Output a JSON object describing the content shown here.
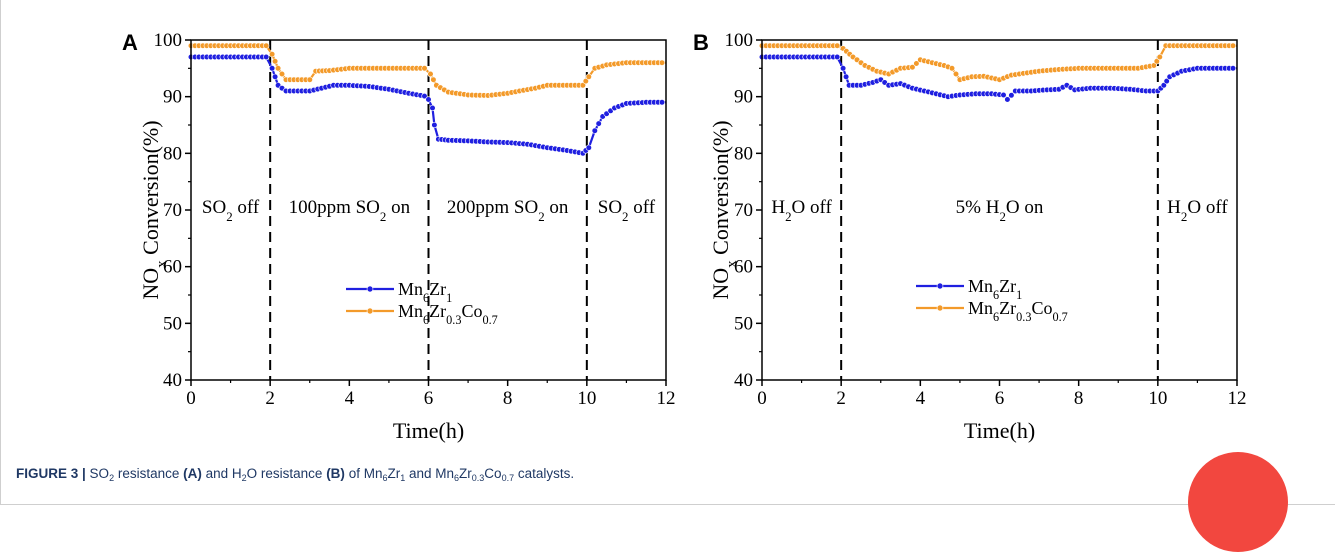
{
  "colors": {
    "series1": "#1f1fe0",
    "series2": "#f39a2a",
    "caption": "#1f3864",
    "badge": "#f2473f"
  },
  "chart_data": [
    {
      "panel": "A",
      "type": "line",
      "xlabel": "Time(h)",
      "ylabel_main": "NO",
      "ylabel_sub": "x",
      "ylabel_rest": " Conversion(%)",
      "xlim": [
        0,
        12
      ],
      "ylim": [
        40,
        100
      ],
      "xticks": [
        0,
        2,
        4,
        6,
        8,
        10,
        12
      ],
      "yticks": [
        40,
        50,
        60,
        70,
        80,
        90,
        100
      ],
      "dividers": [
        2,
        6,
        10
      ],
      "regions": [
        {
          "x": 1,
          "parts": [
            [
              "SO",
              ""
            ],
            [
              "2",
              "sub"
            ],
            [
              " off",
              ""
            ]
          ]
        },
        {
          "x": 4,
          "parts": [
            [
              "100ppm SO",
              ""
            ],
            [
              "2",
              "sub"
            ],
            [
              " on",
              ""
            ]
          ]
        },
        {
          "x": 8,
          "parts": [
            [
              "200ppm SO",
              ""
            ],
            [
              "2",
              "sub"
            ],
            [
              " on",
              ""
            ]
          ]
        },
        {
          "x": 11,
          "parts": [
            [
              "SO",
              ""
            ],
            [
              "2",
              "sub"
            ],
            [
              " off",
              ""
            ]
          ]
        }
      ],
      "legend_position": "center-left",
      "series": [
        {
          "legend": [
            [
              "Mn",
              ""
            ],
            [
              "6",
              "sub"
            ],
            [
              "Zr",
              ""
            ],
            [
              "1",
              "sub"
            ]
          ],
          "color_key": "series1",
          "points": [
            [
              0,
              97
            ],
            [
              0.5,
              97
            ],
            [
              1,
              97
            ],
            [
              1.5,
              97
            ],
            [
              1.9,
              97
            ],
            [
              2.05,
              95
            ],
            [
              2.2,
              92
            ],
            [
              2.4,
              91
            ],
            [
              2.7,
              91
            ],
            [
              3.0,
              91
            ],
            [
              3.3,
              91.5
            ],
            [
              3.6,
              92
            ],
            [
              4,
              92
            ],
            [
              4.5,
              91.8
            ],
            [
              5,
              91.3
            ],
            [
              5.5,
              90.6
            ],
            [
              5.9,
              90.1
            ],
            [
              6.0,
              89.5
            ],
            [
              6.1,
              88
            ],
            [
              6.15,
              85
            ],
            [
              6.25,
              82.5
            ],
            [
              6.5,
              82.3
            ],
            [
              7,
              82.2
            ],
            [
              7.5,
              82
            ],
            [
              8,
              81.9
            ],
            [
              8.5,
              81.6
            ],
            [
              9,
              81
            ],
            [
              9.5,
              80.5
            ],
            [
              9.9,
              80
            ],
            [
              10.05,
              81
            ],
            [
              10.2,
              84
            ],
            [
              10.4,
              86.5
            ],
            [
              10.7,
              88
            ],
            [
              11,
              88.8
            ],
            [
              11.5,
              89
            ],
            [
              12,
              89
            ]
          ]
        },
        {
          "legend": [
            [
              "Mn",
              ""
            ],
            [
              "6",
              "sub"
            ],
            [
              "Zr",
              ""
            ],
            [
              "0.3",
              "sub"
            ],
            [
              "Co",
              ""
            ],
            [
              "0.7",
              "sub"
            ]
          ],
          "color_key": "series2",
          "points": [
            [
              0,
              99
            ],
            [
              0.5,
              99
            ],
            [
              1,
              99
            ],
            [
              1.5,
              99
            ],
            [
              1.9,
              99
            ],
            [
              2.05,
              97.5
            ],
            [
              2.2,
              95
            ],
            [
              2.4,
              93
            ],
            [
              2.7,
              93
            ],
            [
              3.0,
              93
            ],
            [
              3.15,
              94.5
            ],
            [
              3.5,
              94.6
            ],
            [
              4,
              95
            ],
            [
              4.5,
              95
            ],
            [
              5,
              95
            ],
            [
              5.5,
              95
            ],
            [
              5.9,
              95
            ],
            [
              6.05,
              94
            ],
            [
              6.2,
              92
            ],
            [
              6.5,
              90.8
            ],
            [
              7,
              90.3
            ],
            [
              7.5,
              90.2
            ],
            [
              8,
              90.6
            ],
            [
              8.3,
              91
            ],
            [
              8.7,
              91.5
            ],
            [
              9,
              92
            ],
            [
              9.5,
              92
            ],
            [
              9.9,
              92
            ],
            [
              10.05,
              93.5
            ],
            [
              10.2,
              95
            ],
            [
              10.5,
              95.6
            ],
            [
              11,
              96
            ],
            [
              11.5,
              96
            ],
            [
              12,
              96
            ]
          ]
        }
      ]
    },
    {
      "panel": "B",
      "type": "line",
      "xlabel": "Time(h)",
      "ylabel_main": "NO",
      "ylabel_sub": "x",
      "ylabel_rest": " Conversion(%)",
      "xlim": [
        0,
        12
      ],
      "ylim": [
        40,
        100
      ],
      "xticks": [
        0,
        2,
        4,
        6,
        8,
        10,
        12
      ],
      "yticks": [
        40,
        50,
        60,
        70,
        80,
        90,
        100
      ],
      "dividers": [
        2,
        10
      ],
      "regions": [
        {
          "x": 1,
          "parts": [
            [
              "H",
              ""
            ],
            [
              "2",
              "sub"
            ],
            [
              "O off",
              ""
            ]
          ]
        },
        {
          "x": 6,
          "parts": [
            [
              "5% H",
              ""
            ],
            [
              "2",
              "sub"
            ],
            [
              "O on",
              ""
            ]
          ]
        },
        {
          "x": 11,
          "parts": [
            [
              "H",
              ""
            ],
            [
              "2",
              "sub"
            ],
            [
              "O off",
              ""
            ]
          ]
        }
      ],
      "legend_position": "center-left",
      "series": [
        {
          "legend": [
            [
              "Mn",
              ""
            ],
            [
              "6",
              "sub"
            ],
            [
              "Zr",
              ""
            ],
            [
              "1",
              "sub"
            ]
          ],
          "color_key": "series1",
          "points": [
            [
              0,
              97
            ],
            [
              0.5,
              97
            ],
            [
              1,
              97
            ],
            [
              1.5,
              97
            ],
            [
              1.9,
              97
            ],
            [
              2.05,
              95
            ],
            [
              2.2,
              92
            ],
            [
              2.5,
              92
            ],
            [
              2.8,
              92.5
            ],
            [
              3.0,
              93
            ],
            [
              3.2,
              92
            ],
            [
              3.5,
              92.3
            ],
            [
              3.8,
              91.5
            ],
            [
              4.1,
              91
            ],
            [
              4.4,
              90.5
            ],
            [
              4.7,
              90
            ],
            [
              5.0,
              90.3
            ],
            [
              5.4,
              90.5
            ],
            [
              5.8,
              90.5
            ],
            [
              6.1,
              90.3
            ],
            [
              6.2,
              89.5
            ],
            [
              6.4,
              91
            ],
            [
              6.8,
              91
            ],
            [
              7.2,
              91.2
            ],
            [
              7.5,
              91.3
            ],
            [
              7.7,
              92
            ],
            [
              7.9,
              91.2
            ],
            [
              8.3,
              91.5
            ],
            [
              8.8,
              91.5
            ],
            [
              9.3,
              91.3
            ],
            [
              9.7,
              91
            ],
            [
              10,
              91
            ],
            [
              10.15,
              92
            ],
            [
              10.3,
              93.5
            ],
            [
              10.6,
              94.5
            ],
            [
              11,
              95
            ],
            [
              11.5,
              95
            ],
            [
              12,
              95
            ]
          ]
        },
        {
          "legend": [
            [
              "Mn",
              ""
            ],
            [
              "6",
              "sub"
            ],
            [
              "Zr",
              ""
            ],
            [
              "0.3",
              "sub"
            ],
            [
              "Co",
              ""
            ],
            [
              "0.7",
              "sub"
            ]
          ],
          "color_key": "series2",
          "points": [
            [
              0,
              99
            ],
            [
              0.5,
              99
            ],
            [
              1,
              99
            ],
            [
              1.5,
              99
            ],
            [
              1.9,
              99
            ],
            [
              2.05,
              98.5
            ],
            [
              2.3,
              97
            ],
            [
              2.6,
              95.5
            ],
            [
              2.9,
              94.5
            ],
            [
              3.2,
              94
            ],
            [
              3.5,
              95
            ],
            [
              3.8,
              95.2
            ],
            [
              4.0,
              96.5
            ],
            [
              4.3,
              96
            ],
            [
              4.6,
              95.5
            ],
            [
              4.8,
              95
            ],
            [
              5.0,
              93
            ],
            [
              5.3,
              93.5
            ],
            [
              5.6,
              93.6
            ],
            [
              6.0,
              93
            ],
            [
              6.3,
              93.8
            ],
            [
              6.7,
              94.2
            ],
            [
              7.0,
              94.5
            ],
            [
              7.5,
              94.8
            ],
            [
              8,
              95
            ],
            [
              8.5,
              95
            ],
            [
              9,
              95
            ],
            [
              9.5,
              95
            ],
            [
              9.9,
              95.5
            ],
            [
              10.05,
              97
            ],
            [
              10.2,
              99
            ],
            [
              10.5,
              99
            ],
            [
              11,
              99
            ],
            [
              11.5,
              99
            ],
            [
              12,
              99
            ]
          ]
        }
      ]
    }
  ],
  "caption": {
    "parts": [
      [
        "FIGURE 3 | ",
        "b"
      ],
      [
        "SO",
        ""
      ],
      [
        "2",
        "sub"
      ],
      [
        " resistance ",
        ""
      ],
      [
        "(A)",
        "b"
      ],
      [
        " and H",
        ""
      ],
      [
        "2",
        "sub"
      ],
      [
        "O resistance ",
        ""
      ],
      [
        "(B)",
        "b"
      ],
      [
        " of Mn",
        ""
      ],
      [
        "6",
        "sub"
      ],
      [
        "Zr",
        ""
      ],
      [
        "1",
        "sub"
      ],
      [
        " and Mn",
        ""
      ],
      [
        "6",
        "sub"
      ],
      [
        "Zr",
        ""
      ],
      [
        "0.3",
        "sub"
      ],
      [
        "Co",
        ""
      ],
      [
        "0.7",
        "sub"
      ],
      [
        " catalysts.",
        ""
      ]
    ]
  }
}
